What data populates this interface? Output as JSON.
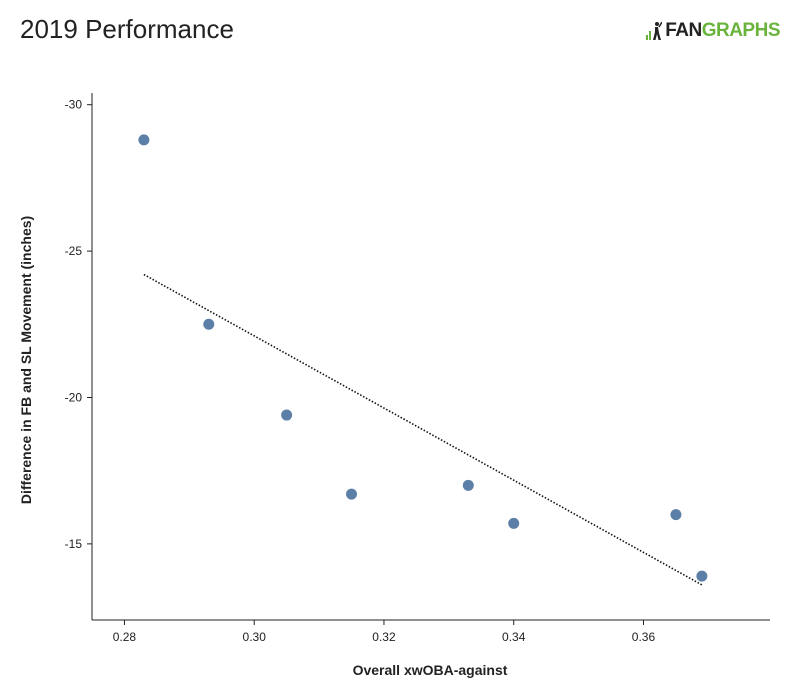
{
  "header": {
    "title": "2019 Performance",
    "logo_left": "FAN",
    "logo_right": "GRAPHS"
  },
  "chart_data": {
    "type": "scatter",
    "title": "2019 Performance",
    "xlabel": "Overall xwOBA-against",
    "ylabel": "Difference in FB and SL Movement (inches)",
    "xlim": [
      0.275,
      0.3795
    ],
    "ylim": [
      -30.4,
      -12.4
    ],
    "y_reversed": true,
    "x_ticks": [
      "0.28",
      "0.30",
      "0.32",
      "0.34",
      "0.36"
    ],
    "x_tick_values": [
      0.28,
      0.3,
      0.32,
      0.34,
      0.36
    ],
    "y_ticks": [
      "-30",
      "-25",
      "-20",
      "-15"
    ],
    "y_tick_values": [
      -30,
      -25,
      -20,
      -15
    ],
    "points": [
      {
        "x": 0.283,
        "y": -28.8
      },
      {
        "x": 0.293,
        "y": -22.5
      },
      {
        "x": 0.305,
        "y": -19.4
      },
      {
        "x": 0.315,
        "y": -16.7
      },
      {
        "x": 0.333,
        "y": -17.0
      },
      {
        "x": 0.34,
        "y": -15.7
      },
      {
        "x": 0.365,
        "y": -16.0
      },
      {
        "x": 0.369,
        "y": -13.9
      }
    ],
    "trendline": {
      "x": [
        0.283,
        0.369
      ],
      "y": [
        -24.2,
        -13.6
      ]
    },
    "grid": false,
    "point_color": "#5b7fa6"
  }
}
